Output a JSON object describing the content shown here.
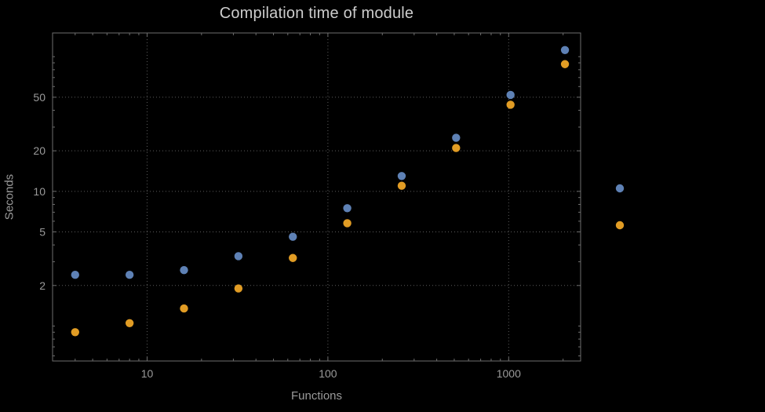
{
  "title": "Compilation time of module",
  "colors": {
    "background": "#000000",
    "frame": "#6e6e6e",
    "grid": "#5c5c5c",
    "tick_text": "#9a9a9a",
    "title_text": "#cdcdcd",
    "series_blue": "#5e81b5",
    "series_orange": "#e19c24"
  },
  "chart_data": {
    "type": "scatter",
    "title": "Compilation time of module",
    "xlabel": "Functions",
    "ylabel": "Seconds",
    "xscale": "log",
    "yscale": "log",
    "xlim": [
      3,
      2500
    ],
    "ylim": [
      0.55,
      150
    ],
    "grid": "dotted",
    "x_ticks": [
      {
        "value": 10,
        "label": "10"
      },
      {
        "value": 100,
        "label": "100"
      },
      {
        "value": 1000,
        "label": "1000"
      }
    ],
    "y_ticks": [
      {
        "value": 2,
        "label": "2"
      },
      {
        "value": 5,
        "label": "5"
      },
      {
        "value": 10,
        "label": "10"
      },
      {
        "value": 20,
        "label": "20"
      },
      {
        "value": 50,
        "label": "50"
      }
    ],
    "x": [
      4,
      8,
      16,
      32,
      64,
      128,
      256,
      512,
      1024,
      2048
    ],
    "series": [
      {
        "name": "blue",
        "color": "#5e81b5",
        "values": [
          2.4,
          2.4,
          2.6,
          3.3,
          4.6,
          7.5,
          13,
          25,
          52,
          112
        ]
      },
      {
        "name": "orange",
        "color": "#e19c24",
        "values": [
          0.9,
          1.05,
          1.35,
          1.9,
          3.2,
          5.8,
          11,
          21,
          44,
          88
        ]
      }
    ],
    "legend": {
      "position": "right",
      "entries": [
        {
          "name": "blue",
          "color": "#5e81b5"
        },
        {
          "name": "orange",
          "color": "#e19c24"
        }
      ]
    }
  }
}
